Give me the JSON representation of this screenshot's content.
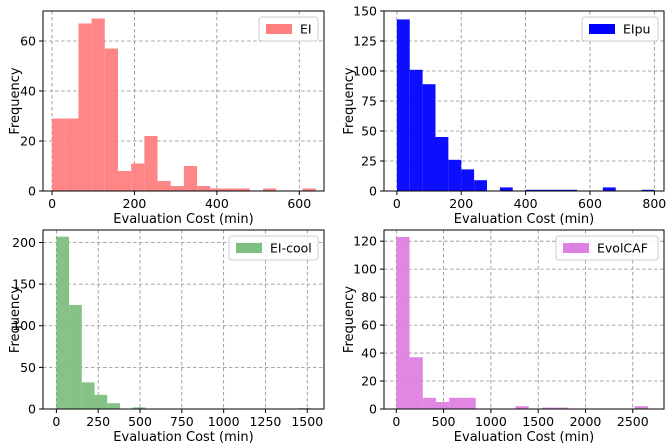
{
  "chart_data": [
    {
      "type": "bar",
      "series": [
        {
          "name": "EI",
          "color": "#ff7f7f"
        }
      ],
      "bins": [
        [
          0,
          32,
          29
        ],
        [
          32,
          64,
          29
        ],
        [
          64,
          96,
          67
        ],
        [
          96,
          128,
          69
        ],
        [
          128,
          160,
          57
        ],
        [
          160,
          192,
          8
        ],
        [
          192,
          224,
          11
        ],
        [
          224,
          256,
          22
        ],
        [
          256,
          288,
          4
        ],
        [
          288,
          320,
          2
        ],
        [
          320,
          352,
          10
        ],
        [
          352,
          384,
          2
        ],
        [
          384,
          416,
          1
        ],
        [
          416,
          448,
          1
        ],
        [
          448,
          480,
          1
        ],
        [
          512,
          544,
          1
        ],
        [
          608,
          640,
          1
        ]
      ],
      "xlabel": "Evaluation Cost (min)",
      "ylabel": "Frequency",
      "xlim": [
        -22,
        660
      ],
      "ylim": [
        0,
        72
      ],
      "xticks": [
        0,
        200,
        400,
        600
      ],
      "yticks": [
        0,
        20,
        40,
        60
      ],
      "grid": true,
      "legend": "top-right"
    },
    {
      "type": "bar",
      "series": [
        {
          "name": "EIpu",
          "color": "#0000ff"
        }
      ],
      "bins": [
        [
          0,
          40,
          143
        ],
        [
          40,
          80,
          101
        ],
        [
          80,
          120,
          89
        ],
        [
          120,
          160,
          45
        ],
        [
          160,
          200,
          26
        ],
        [
          200,
          240,
          18
        ],
        [
          240,
          280,
          9
        ],
        [
          320,
          360,
          3
        ],
        [
          400,
          440,
          1
        ],
        [
          440,
          480,
          1
        ],
        [
          480,
          520,
          1
        ],
        [
          520,
          560,
          1
        ],
        [
          640,
          680,
          3
        ],
        [
          760,
          800,
          1
        ]
      ],
      "xlabel": "Evaluation Cost (min)",
      "ylabel": "Frequency",
      "xlim": [
        -40,
        830
      ],
      "ylim": [
        0,
        150
      ],
      "xticks": [
        0,
        200,
        400,
        600,
        800
      ],
      "yticks": [
        0,
        25,
        50,
        75,
        100,
        125,
        150
      ],
      "grid": true,
      "legend": "top-right"
    },
    {
      "type": "bar",
      "series": [
        {
          "name": "EI-cool",
          "color": "#7fbf7f"
        }
      ],
      "bins": [
        [
          0,
          76,
          207
        ],
        [
          76,
          152,
          125
        ],
        [
          152,
          228,
          32
        ],
        [
          228,
          304,
          17
        ],
        [
          304,
          380,
          7
        ],
        [
          456,
          532,
          2
        ],
        [
          1444,
          1520,
          1
        ]
      ],
      "xlabel": "Evaluation Cost (min)",
      "ylabel": "Frequency",
      "xlim": [
        -80,
        1600
      ],
      "ylim": [
        0,
        215
      ],
      "xticks": [
        0,
        250,
        500,
        750,
        1000,
        1250,
        1500
      ],
      "yticks": [
        0,
        50,
        100,
        150,
        200
      ],
      "grid": true,
      "legend": "top-right"
    },
    {
      "type": "bar",
      "series": [
        {
          "name": "EvolCAF",
          "color": "#df7fdf"
        }
      ],
      "bins": [
        [
          0,
          140,
          123
        ],
        [
          140,
          280,
          37
        ],
        [
          280,
          420,
          8
        ],
        [
          420,
          560,
          5
        ],
        [
          560,
          700,
          8
        ],
        [
          700,
          840,
          8
        ],
        [
          1260,
          1400,
          2
        ],
        [
          1540,
          1680,
          1
        ],
        [
          1680,
          1820,
          1
        ],
        [
          2520,
          2660,
          2
        ]
      ],
      "xlabel": "Evaluation Cost (min)",
      "ylabel": "Frequency",
      "xlim": [
        -130,
        2830
      ],
      "ylim": [
        0,
        128
      ],
      "xticks": [
        0,
        500,
        1000,
        1500,
        2000,
        2500
      ],
      "yticks": [
        0,
        20,
        40,
        60,
        80,
        100,
        120
      ],
      "grid": true,
      "legend": "top-right"
    }
  ]
}
